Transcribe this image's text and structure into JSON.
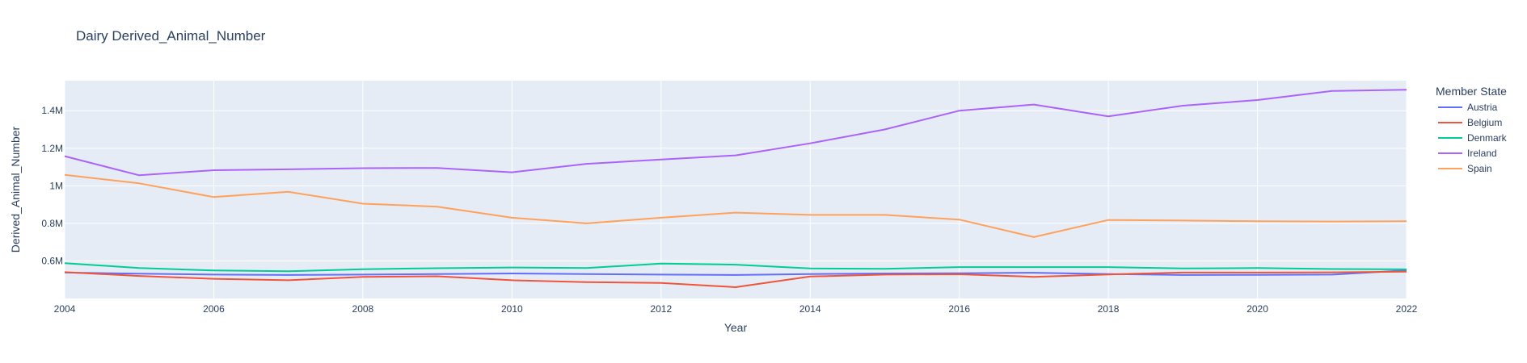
{
  "chart_data": {
    "type": "line",
    "title": "Dairy Derived_Animal_Number",
    "xlabel": "Year",
    "ylabel": "Derived_Animal_Number",
    "xlim": [
      2004,
      2022
    ],
    "ylim": [
      400000,
      1560000
    ],
    "x_ticks": [
      2004,
      2006,
      2008,
      2010,
      2012,
      2014,
      2016,
      2018,
      2020,
      2022
    ],
    "y_ticks": [
      600000,
      800000,
      1000000,
      1200000,
      1400000
    ],
    "y_tick_labels": [
      "0.6M",
      "0.8M",
      "1M",
      "1.2M",
      "1.4M"
    ],
    "grid": true,
    "legend_title": "Member State",
    "legend_position": "right",
    "x": [
      2004,
      2005,
      2006,
      2007,
      2008,
      2009,
      2010,
      2011,
      2012,
      2013,
      2014,
      2015,
      2016,
      2017,
      2018,
      2019,
      2020,
      2021,
      2022
    ],
    "series": [
      {
        "name": "Austria",
        "color": "#636efa",
        "values": [
          538000,
          532000,
          527000,
          525000,
          527000,
          530000,
          533000,
          530000,
          527000,
          525000,
          530000,
          533000,
          534000,
          537000,
          530000,
          525000,
          526000,
          527000,
          550000
        ]
      },
      {
        "name": "Belgium",
        "color": "#ef553b",
        "values": [
          540000,
          520000,
          505000,
          497000,
          515000,
          518000,
          497000,
          487000,
          483000,
          460000,
          517000,
          527000,
          529000,
          515000,
          528000,
          538000,
          538000,
          539000,
          543000
        ]
      },
      {
        "name": "Denmark",
        "color": "#00cc96",
        "values": [
          588000,
          562000,
          549000,
          545000,
          556000,
          561000,
          565000,
          562000,
          586000,
          580000,
          560000,
          558000,
          567000,
          567000,
          567000,
          560000,
          562000,
          557000,
          555000
        ]
      },
      {
        "name": "Ireland",
        "color": "#ab63fa",
        "values": [
          1158000,
          1056000,
          1083000,
          1088000,
          1094000,
          1095000,
          1072000,
          1117000,
          1140000,
          1162000,
          1226000,
          1300000,
          1400000,
          1433000,
          1370000,
          1427000,
          1457000,
          1505000,
          1512000
        ]
      },
      {
        "name": "Spain",
        "color": "#ffa15a",
        "values": [
          1058000,
          1013000,
          940000,
          968000,
          905000,
          889000,
          830000,
          800000,
          830000,
          857000,
          845000,
          845000,
          820000,
          727000,
          818000,
          815000,
          811000,
          810000,
          811000
        ]
      }
    ]
  }
}
